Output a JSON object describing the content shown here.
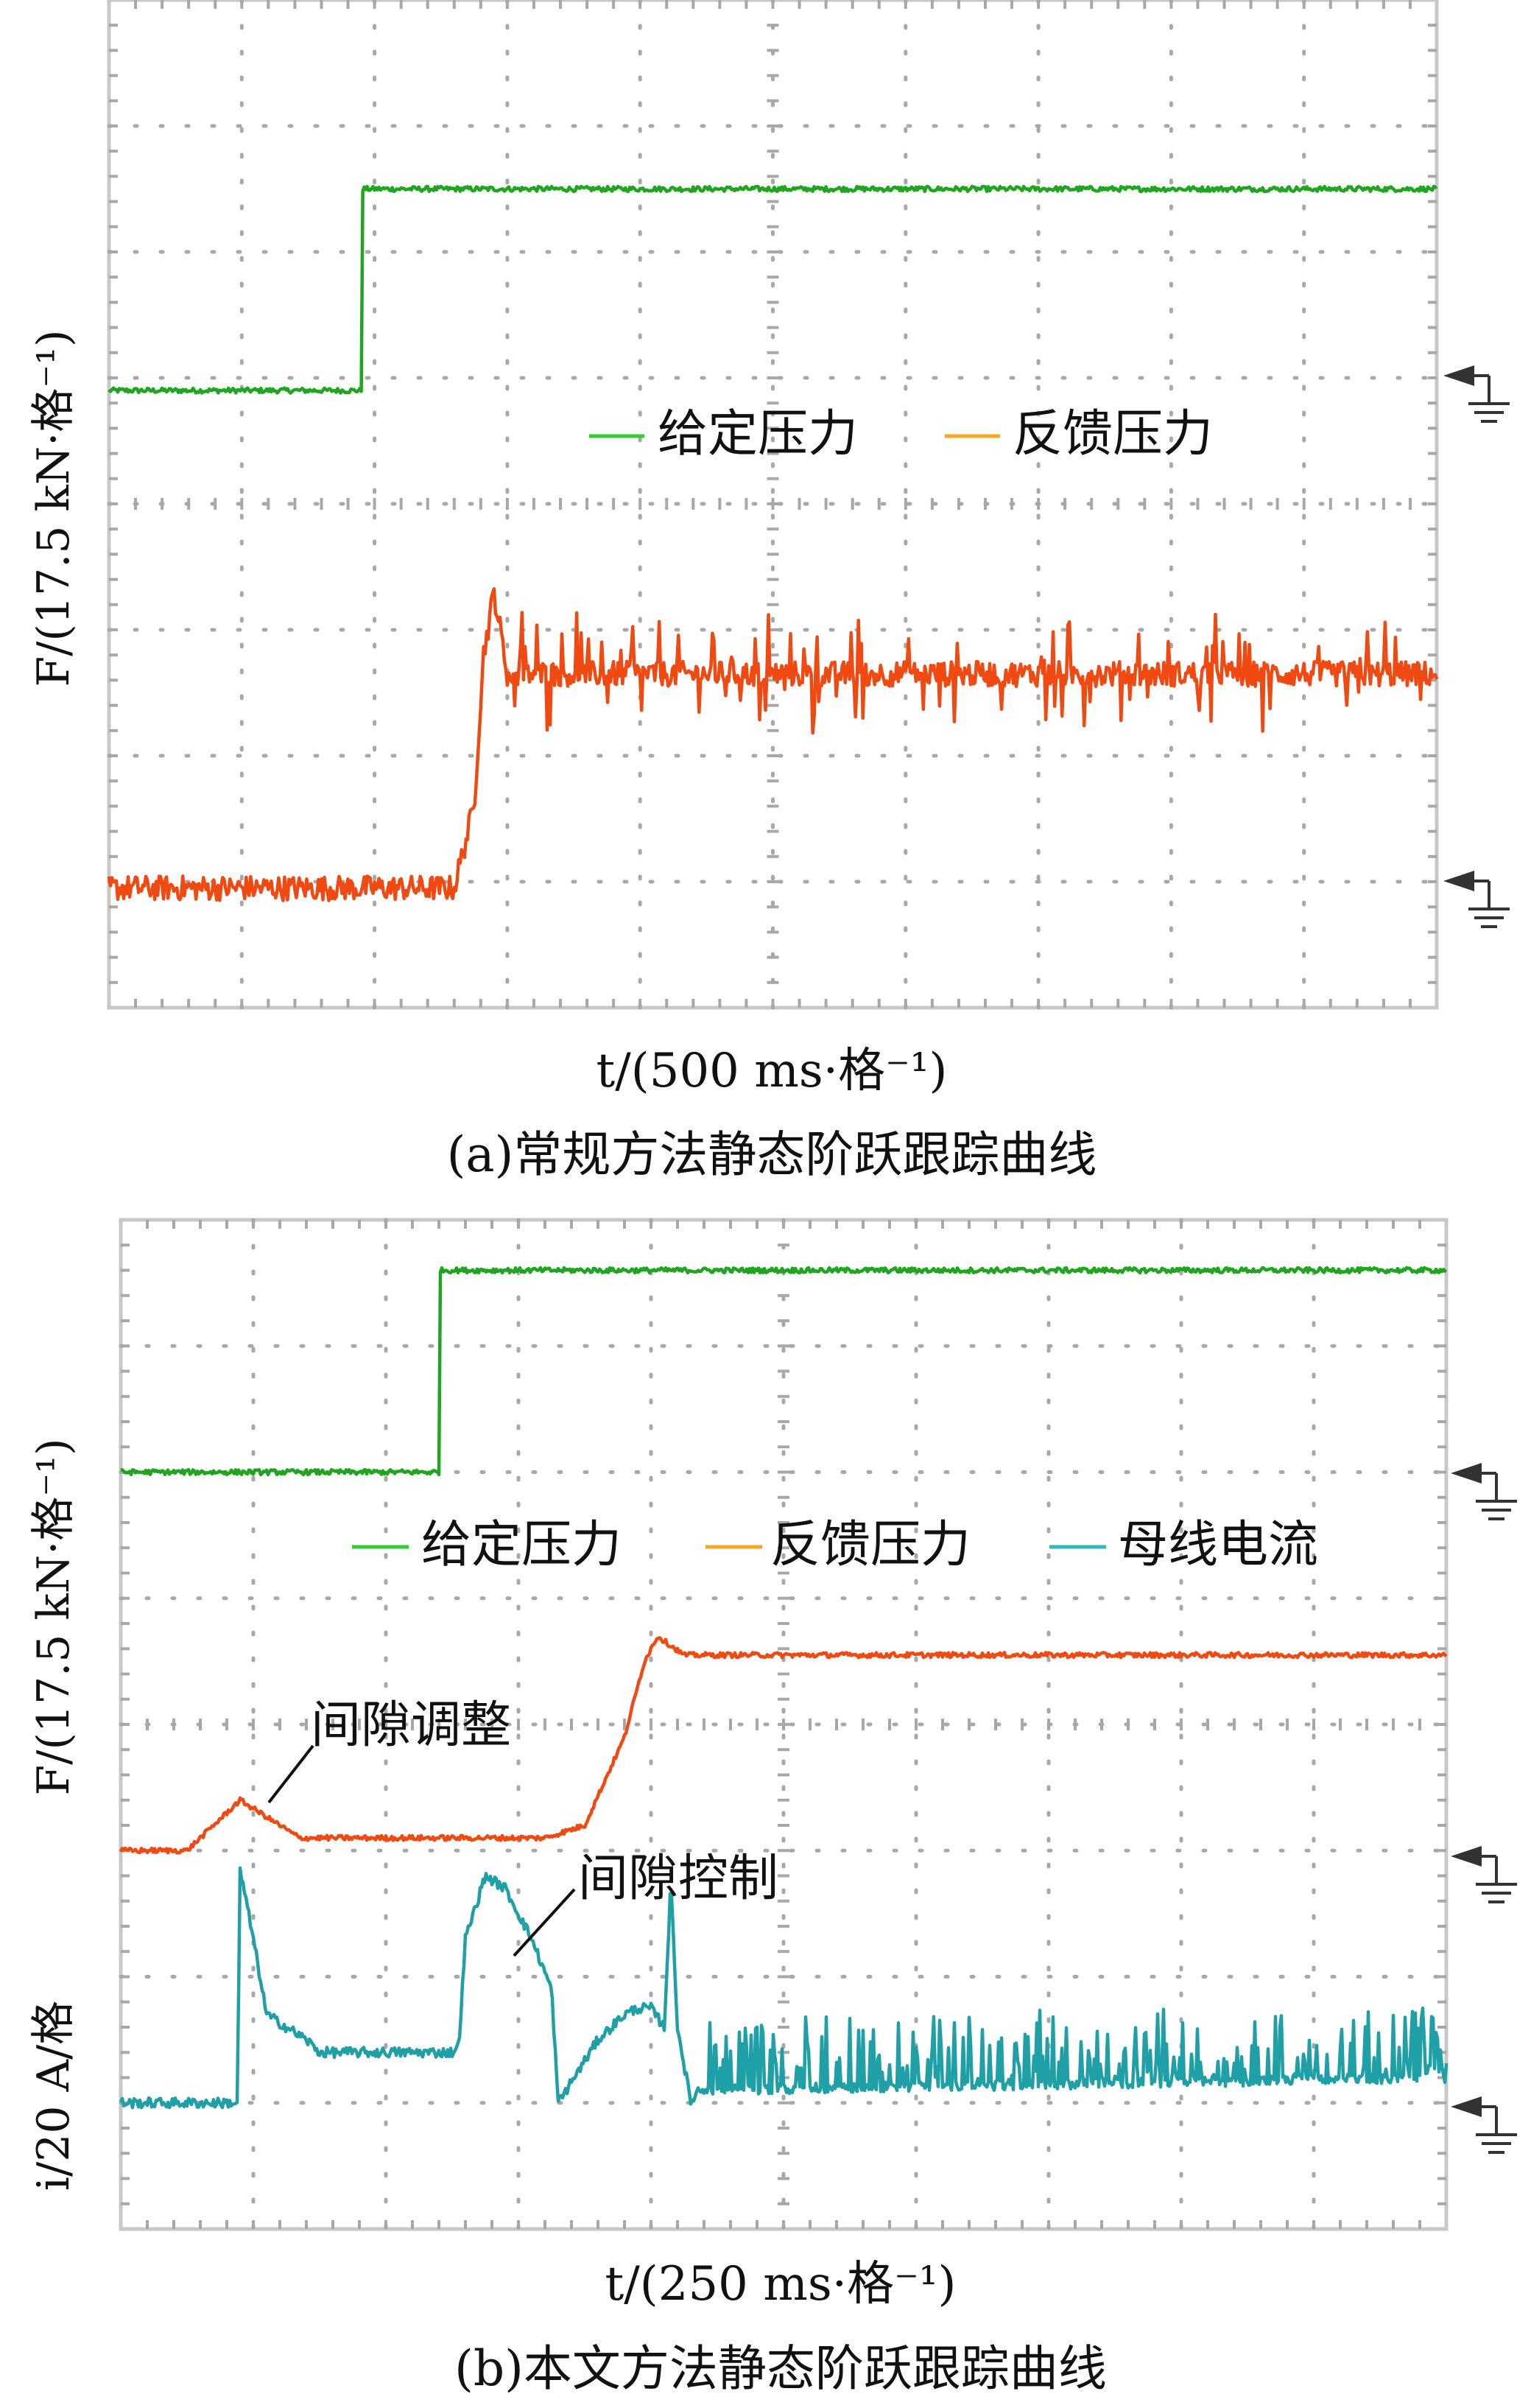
{
  "colors": {
    "given": "#1fa51f",
    "feedback": "#f04a12",
    "current": "#1f9fa6",
    "legend_given": "#33cc33",
    "legend_feedback": "#f5a623",
    "legend_current": "#33bbbb",
    "grid": "#a8a8a8",
    "frame": "#c8c8c8"
  },
  "chart_data": [
    {
      "type": "line",
      "caption": "(a)常规方法静态阶跃跟踪曲线",
      "ylabel": "F/(17.5 kN·格⁻¹)",
      "xlabel": "t/(500 ms·格⁻¹)",
      "grid": true,
      "x_divisions": 10,
      "y_divisions": 8,
      "x_range_div": [
        0,
        10
      ],
      "y_range_div": [
        0,
        8
      ],
      "legend": [
        "给定压力",
        "反馈压力"
      ],
      "legend_placement": "upper-middle",
      "ground_markers": [
        "given",
        "feedback"
      ],
      "series": [
        {
          "name": "给定压力",
          "key": "given",
          "x": [
            0,
            1.9,
            1.9,
            10
          ],
          "y": [
            4.9,
            4.9,
            6.5,
            6.5
          ],
          "noise": 0.02
        },
        {
          "name": "反馈压力",
          "key": "feedback",
          "x": [
            0,
            2.6,
            2.75,
            2.82,
            2.9,
            3.0,
            10
          ],
          "y": [
            0.95,
            0.95,
            1.6,
            2.8,
            3.3,
            2.65,
            2.65
          ],
          "noise": 0.1,
          "spikes": true
        }
      ]
    },
    {
      "type": "line",
      "caption": "(b)本文方法静态阶跃跟踪曲线",
      "ylabel": "F/(17.5 kN·格⁻¹)",
      "ylabel2": "i/20 A/格",
      "xlabel": "t/(250 ms·格⁻¹)",
      "grid": true,
      "x_divisions": 10,
      "y_divisions": 8,
      "x_range_div": [
        0,
        10
      ],
      "y_range_div": [
        0,
        8
      ],
      "legend": [
        "给定压力",
        "反馈压力",
        "母线电流"
      ],
      "legend_placement": "upper-middle",
      "annotations": [
        "间隙调整",
        "间隙控制"
      ],
      "ground_markers": [
        "given",
        "feedback",
        "current"
      ],
      "series": [
        {
          "name": "给定压力",
          "key": "given",
          "x": [
            0,
            2.4,
            2.4,
            10
          ],
          "y": [
            6.0,
            6.0,
            7.6,
            7.6
          ],
          "noise": 0.02
        },
        {
          "name": "反馈压力",
          "key": "feedback",
          "x": [
            0,
            0.5,
            0.9,
            1.35,
            3.2,
            3.5,
            3.8,
            3.95,
            4.05,
            4.25,
            10
          ],
          "y": [
            3.0,
            3.0,
            3.4,
            3.1,
            3.1,
            3.2,
            3.9,
            4.5,
            4.7,
            4.55,
            4.55
          ],
          "noise": 0.02
        },
        {
          "name": "母线电流",
          "key": "current",
          "x": [
            0,
            0.88,
            0.9,
            1.0,
            1.1,
            1.4,
            1.5,
            2.5,
            2.55,
            2.6,
            2.75,
            2.9,
            3.1,
            3.25,
            3.3,
            3.6,
            3.8,
            3.9,
            4.0,
            4.1,
            4.15,
            4.2,
            4.3,
            4.35,
            10
          ],
          "y": [
            1.0,
            1.0,
            2.85,
            2.3,
            1.7,
            1.5,
            1.4,
            1.4,
            1.45,
            2.3,
            2.8,
            2.7,
            2.3,
            1.9,
            1.0,
            1.5,
            1.7,
            1.75,
            1.75,
            1.6,
            2.75,
            1.6,
            1.0,
            1.1,
            1.2
          ],
          "noise": 0.04
        }
      ]
    }
  ]
}
